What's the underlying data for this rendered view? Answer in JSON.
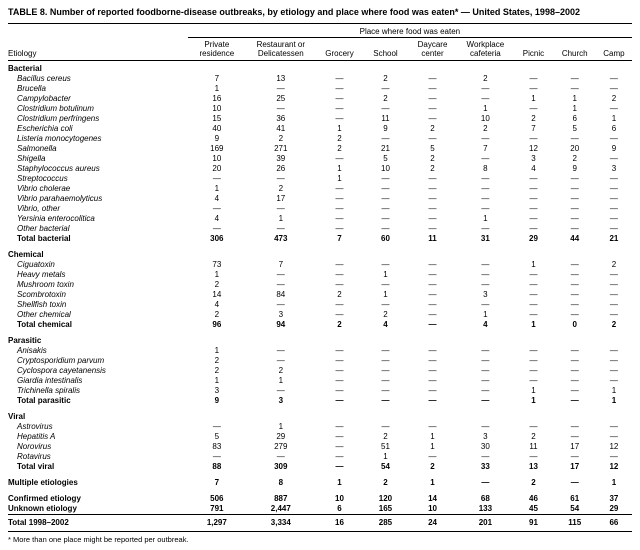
{
  "title": "TABLE 8. Number of reported foodborne-disease outbreaks, by etiology and place where food was eaten* — United States, 1998–2002",
  "footnote": "* More than one place might be reported per outbreak.",
  "colors": {
    "text": "#000000",
    "background": "#ffffff",
    "rule": "#000000"
  },
  "table": {
    "group_header": "Place where food was eaten",
    "row_header": "Etiology",
    "columns": [
      "Private\nresidence",
      "Restaurant or\nDelicatessen",
      "Grocery",
      "School",
      "Daycare\ncenter",
      "Workplace\ncafeteria",
      "Picnic",
      "Church",
      "Camp"
    ],
    "rows": [
      {
        "type": "section",
        "label": "Bacterial"
      },
      {
        "type": "item",
        "label": "Bacillus cereus",
        "values": [
          "7",
          "13",
          "—",
          "2",
          "—",
          "2",
          "—",
          "—",
          "—"
        ]
      },
      {
        "type": "item",
        "label": "Brucella",
        "values": [
          "1",
          "—",
          "—",
          "—",
          "—",
          "—",
          "—",
          "—",
          "—"
        ]
      },
      {
        "type": "item",
        "label": "Campylobacter",
        "values": [
          "16",
          "25",
          "—",
          "2",
          "—",
          "—",
          "1",
          "1",
          "2"
        ]
      },
      {
        "type": "item",
        "label": "Clostridium botulinum",
        "values": [
          "10",
          "—",
          "—",
          "—",
          "—",
          "1",
          "—",
          "1",
          "—"
        ]
      },
      {
        "type": "item",
        "label": "Clostridium perfringens",
        "values": [
          "15",
          "36",
          "—",
          "11",
          "—",
          "10",
          "2",
          "6",
          "1"
        ]
      },
      {
        "type": "item",
        "label": "Escherichia coli",
        "values": [
          "40",
          "41",
          "1",
          "9",
          "2",
          "2",
          "7",
          "5",
          "6"
        ]
      },
      {
        "type": "item",
        "label": "Listeria monocytogenes",
        "values": [
          "9",
          "2",
          "2",
          "—",
          "—",
          "—",
          "—",
          "—",
          "—"
        ]
      },
      {
        "type": "item",
        "label": "Salmonella",
        "values": [
          "169",
          "271",
          "2",
          "21",
          "5",
          "7",
          "12",
          "20",
          "9"
        ]
      },
      {
        "type": "item",
        "label": "Shigella",
        "values": [
          "10",
          "39",
          "—",
          "5",
          "2",
          "—",
          "3",
          "2",
          "—"
        ]
      },
      {
        "type": "item",
        "label": "Staphylococcus aureus",
        "values": [
          "20",
          "26",
          "1",
          "10",
          "2",
          "8",
          "4",
          "9",
          "3"
        ]
      },
      {
        "type": "item",
        "label": "Streptococcus",
        "values": [
          "—",
          "—",
          "1",
          "—",
          "—",
          "—",
          "—",
          "—",
          "—"
        ]
      },
      {
        "type": "item",
        "label": "Vibrio cholerae",
        "values": [
          "1",
          "2",
          "—",
          "—",
          "—",
          "—",
          "—",
          "—",
          "—"
        ]
      },
      {
        "type": "item",
        "label": "Vibrio parahaemolyticus",
        "values": [
          "4",
          "17",
          "—",
          "—",
          "—",
          "—",
          "—",
          "—",
          "—"
        ]
      },
      {
        "type": "item",
        "label": "Vibrio, other",
        "values": [
          "—",
          "—",
          "—",
          "—",
          "—",
          "—",
          "—",
          "—",
          "—"
        ]
      },
      {
        "type": "item",
        "label": "Yersinia enterocolitica",
        "values": [
          "4",
          "1",
          "—",
          "—",
          "—",
          "1",
          "—",
          "—",
          "—"
        ]
      },
      {
        "type": "item",
        "label": "Other bacterial",
        "values": [
          "—",
          "—",
          "—",
          "—",
          "—",
          "—",
          "—",
          "—",
          "—"
        ]
      },
      {
        "type": "total",
        "label": "Total bacterial",
        "values": [
          "306",
          "473",
          "7",
          "60",
          "11",
          "31",
          "29",
          "44",
          "21"
        ]
      },
      {
        "type": "section",
        "gap": true,
        "label": "Chemical"
      },
      {
        "type": "item",
        "label": "Ciguatoxin",
        "values": [
          "73",
          "7",
          "—",
          "—",
          "—",
          "—",
          "1",
          "—",
          "2"
        ]
      },
      {
        "type": "item",
        "label": "Heavy metals",
        "values": [
          "1",
          "—",
          "—",
          "1",
          "—",
          "—",
          "—",
          "—",
          "—"
        ]
      },
      {
        "type": "item",
        "label": "Mushroom toxin",
        "values": [
          "2",
          "—",
          "—",
          "—",
          "—",
          "—",
          "—",
          "—",
          "—"
        ]
      },
      {
        "type": "item",
        "label": "Scombrotoxin",
        "values": [
          "14",
          "84",
          "2",
          "1",
          "—",
          "3",
          "—",
          "—",
          "—"
        ]
      },
      {
        "type": "item",
        "label": "Shellfish toxin",
        "values": [
          "4",
          "—",
          "—",
          "—",
          "—",
          "—",
          "—",
          "—",
          "—"
        ]
      },
      {
        "type": "item",
        "label": "Other chemical",
        "values": [
          "2",
          "3",
          "—",
          "2",
          "—",
          "1",
          "—",
          "—",
          "—"
        ]
      },
      {
        "type": "total",
        "label": "Total chemical",
        "values": [
          "96",
          "94",
          "2",
          "4",
          "—",
          "4",
          "1",
          "0",
          "2"
        ]
      },
      {
        "type": "section",
        "gap": true,
        "label": "Parasitic"
      },
      {
        "type": "item",
        "label": "Anisakis",
        "values": [
          "1",
          "—",
          "—",
          "—",
          "—",
          "—",
          "—",
          "—",
          "—"
        ]
      },
      {
        "type": "item",
        "label": "Cryptosporidium parvum",
        "values": [
          "2",
          "—",
          "—",
          "—",
          "—",
          "—",
          "—",
          "—",
          "—"
        ]
      },
      {
        "type": "item",
        "label": "Cyclospora cayetanensis",
        "values": [
          "2",
          "2",
          "—",
          "—",
          "—",
          "—",
          "—",
          "—",
          "—"
        ]
      },
      {
        "type": "item",
        "label": "Giardia intestinalis",
        "values": [
          "1",
          "1",
          "—",
          "—",
          "—",
          "—",
          "—",
          "—",
          "—"
        ]
      },
      {
        "type": "item",
        "label": "Trichinella spiralis",
        "values": [
          "3",
          "—",
          "—",
          "—",
          "—",
          "—",
          "1",
          "—",
          "1"
        ]
      },
      {
        "type": "total",
        "label": "Total parasitic",
        "values": [
          "9",
          "3",
          "—",
          "—",
          "—",
          "—",
          "1",
          "—",
          "1"
        ]
      },
      {
        "type": "section",
        "gap": true,
        "label": "Viral"
      },
      {
        "type": "item",
        "label": "Astrovirus",
        "values": [
          "—",
          "1",
          "—",
          "—",
          "—",
          "—",
          "—",
          "—",
          "—"
        ]
      },
      {
        "type": "item",
        "label": "Hepatitis A",
        "values": [
          "5",
          "29",
          "—",
          "2",
          "1",
          "3",
          "2",
          "—",
          "—"
        ]
      },
      {
        "type": "item",
        "label": "Norovirus",
        "values": [
          "83",
          "279",
          "—",
          "51",
          "1",
          "30",
          "11",
          "17",
          "12"
        ]
      },
      {
        "type": "item",
        "label": "Rotavirus",
        "values": [
          "—",
          "—",
          "—",
          "1",
          "—",
          "—",
          "—",
          "—",
          "—"
        ]
      },
      {
        "type": "total",
        "label": "Total viral",
        "values": [
          "88",
          "309",
          "—",
          "54",
          "2",
          "33",
          "13",
          "17",
          "12"
        ]
      },
      {
        "type": "summary",
        "gap": true,
        "label": "Multiple etiologies",
        "values": [
          "7",
          "8",
          "1",
          "2",
          "1",
          "—",
          "2",
          "—",
          "1"
        ]
      },
      {
        "type": "summary",
        "gap": true,
        "label": "Confirmed etiology",
        "values": [
          "506",
          "887",
          "10",
          "120",
          "14",
          "68",
          "46",
          "61",
          "37"
        ]
      },
      {
        "type": "summary",
        "label": "Unknown etiology",
        "values": [
          "791",
          "2,447",
          "6",
          "165",
          "10",
          "133",
          "45",
          "54",
          "29"
        ]
      },
      {
        "type": "grand",
        "gap": true,
        "label": "Total 1998–2002",
        "values": [
          "1,297",
          "3,334",
          "16",
          "285",
          "24",
          "201",
          "91",
          "115",
          "66"
        ]
      }
    ]
  }
}
